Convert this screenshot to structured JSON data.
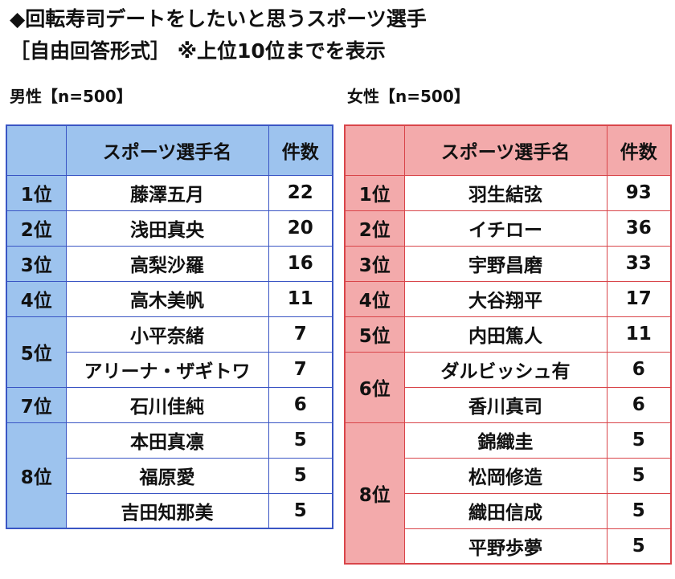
{
  "title_line1": "◆回転寿司デートをしたいと思うスポーツ選手",
  "title_line2": "［自由回答形式］ ※上位10位までを表示",
  "male": {
    "label": "男性【n=500】",
    "header": {
      "rank": "",
      "name": "スポーツ選手名",
      "count": "件数"
    },
    "rows": [
      {
        "rank": "1位",
        "rank_span": 1,
        "name": "藤澤五月",
        "count": "22"
      },
      {
        "rank": "2位",
        "rank_span": 1,
        "name": "浅田真央",
        "count": "20"
      },
      {
        "rank": "3位",
        "rank_span": 1,
        "name": "高梨沙羅",
        "count": "16"
      },
      {
        "rank": "4位",
        "rank_span": 1,
        "name": "高木美帆",
        "count": "11"
      },
      {
        "rank": "5位",
        "rank_span": 2,
        "name": "小平奈緒",
        "count": "7"
      },
      {
        "rank": "",
        "rank_span": 0,
        "name": "アリーナ・ザギトワ",
        "count": "7"
      },
      {
        "rank": "7位",
        "rank_span": 1,
        "name": "石川佳純",
        "count": "6"
      },
      {
        "rank": "8位",
        "rank_span": 3,
        "name": "本田真凛",
        "count": "5"
      },
      {
        "rank": "",
        "rank_span": 0,
        "name": "福原愛",
        "count": "5"
      },
      {
        "rank": "",
        "rank_span": 0,
        "name": "吉田知那美",
        "count": "5"
      }
    ]
  },
  "female": {
    "label": "女性【n=500】",
    "header": {
      "rank": "",
      "name": "スポーツ選手名",
      "count": "件数"
    },
    "rows": [
      {
        "rank": "1位",
        "rank_span": 1,
        "name": "羽生結弦",
        "count": "93"
      },
      {
        "rank": "2位",
        "rank_span": 1,
        "name": "イチロー",
        "count": "36"
      },
      {
        "rank": "3位",
        "rank_span": 1,
        "name": "宇野昌磨",
        "count": "33"
      },
      {
        "rank": "4位",
        "rank_span": 1,
        "name": "大谷翔平",
        "count": "17"
      },
      {
        "rank": "5位",
        "rank_span": 1,
        "name": "内田篤人",
        "count": "11"
      },
      {
        "rank": "6位",
        "rank_span": 2,
        "name": "ダルビッシュ有",
        "count": "6"
      },
      {
        "rank": "",
        "rank_span": 0,
        "name": "香川真司",
        "count": "6"
      },
      {
        "rank": "8位",
        "rank_span": 4,
        "name": "錦織圭",
        "count": "5"
      },
      {
        "rank": "",
        "rank_span": 0,
        "name": "松岡修造",
        "count": "5"
      },
      {
        "rank": "",
        "rank_span": 0,
        "name": "織田信成",
        "count": "5"
      },
      {
        "rank": "",
        "rank_span": 0,
        "name": "平野歩夢",
        "count": "5"
      }
    ]
  }
}
